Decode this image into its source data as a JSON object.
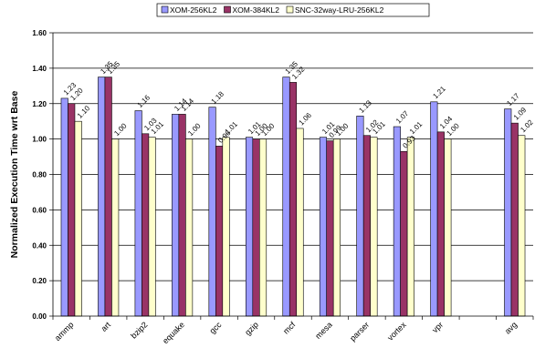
{
  "chart_data": {
    "type": "bar",
    "title": "",
    "xlabel": "",
    "ylabel": "Normalized Execution Time wrt Base",
    "ylim": [
      0,
      1.6
    ],
    "yticks": [
      "0.00",
      "0.20",
      "0.40",
      "0.60",
      "0.80",
      "1.00",
      "1.20",
      "1.40",
      "1.60"
    ],
    "grid": true,
    "legend_position": "top",
    "categories": [
      "ammp",
      "art",
      "bzip2",
      "equake",
      "gcc",
      "gzip",
      "mcf",
      "mesa",
      "parser",
      "vortex",
      "vpr",
      "",
      "avg"
    ],
    "series": [
      {
        "name": "XOM-256KL2",
        "color": "#9999ff",
        "values": [
          1.23,
          1.35,
          1.16,
          1.14,
          1.18,
          1.01,
          1.35,
          1.01,
          1.13,
          1.07,
          1.21,
          null,
          1.17
        ],
        "labels": [
          "1.23",
          "1.35",
          "1.16",
          "1.14",
          "1.18",
          "1.01",
          "1.35",
          "1.01",
          "1.13",
          "1.07",
          "1.21",
          "",
          "1.17"
        ]
      },
      {
        "name": "XOM-384KL2",
        "color": "#993366",
        "values": [
          1.2,
          1.35,
          1.03,
          1.14,
          0.96,
          1.0,
          1.32,
          0.99,
          1.02,
          0.93,
          1.04,
          null,
          1.09
        ],
        "labels": [
          "1.20",
          "1.35",
          "1.03",
          "1.14",
          "0.96",
          "1.00",
          "1.32",
          "0.99",
          "1.02",
          "0.93",
          "1.04",
          "",
          "1.09"
        ]
      },
      {
        "name": "SNC-32way-LRU-256KL2",
        "color": "#ffffcc",
        "values": [
          1.1,
          1.0,
          1.01,
          1.0,
          1.01,
          1.0,
          1.06,
          1.0,
          1.01,
          1.01,
          1.0,
          null,
          1.02
        ],
        "labels": [
          "1.10",
          "1.00",
          "1.01",
          "1.00",
          "1.01",
          "1.00",
          "1.06",
          "1.00",
          "1.01",
          "1.01",
          "1.00",
          "",
          "1.02"
        ]
      }
    ]
  }
}
